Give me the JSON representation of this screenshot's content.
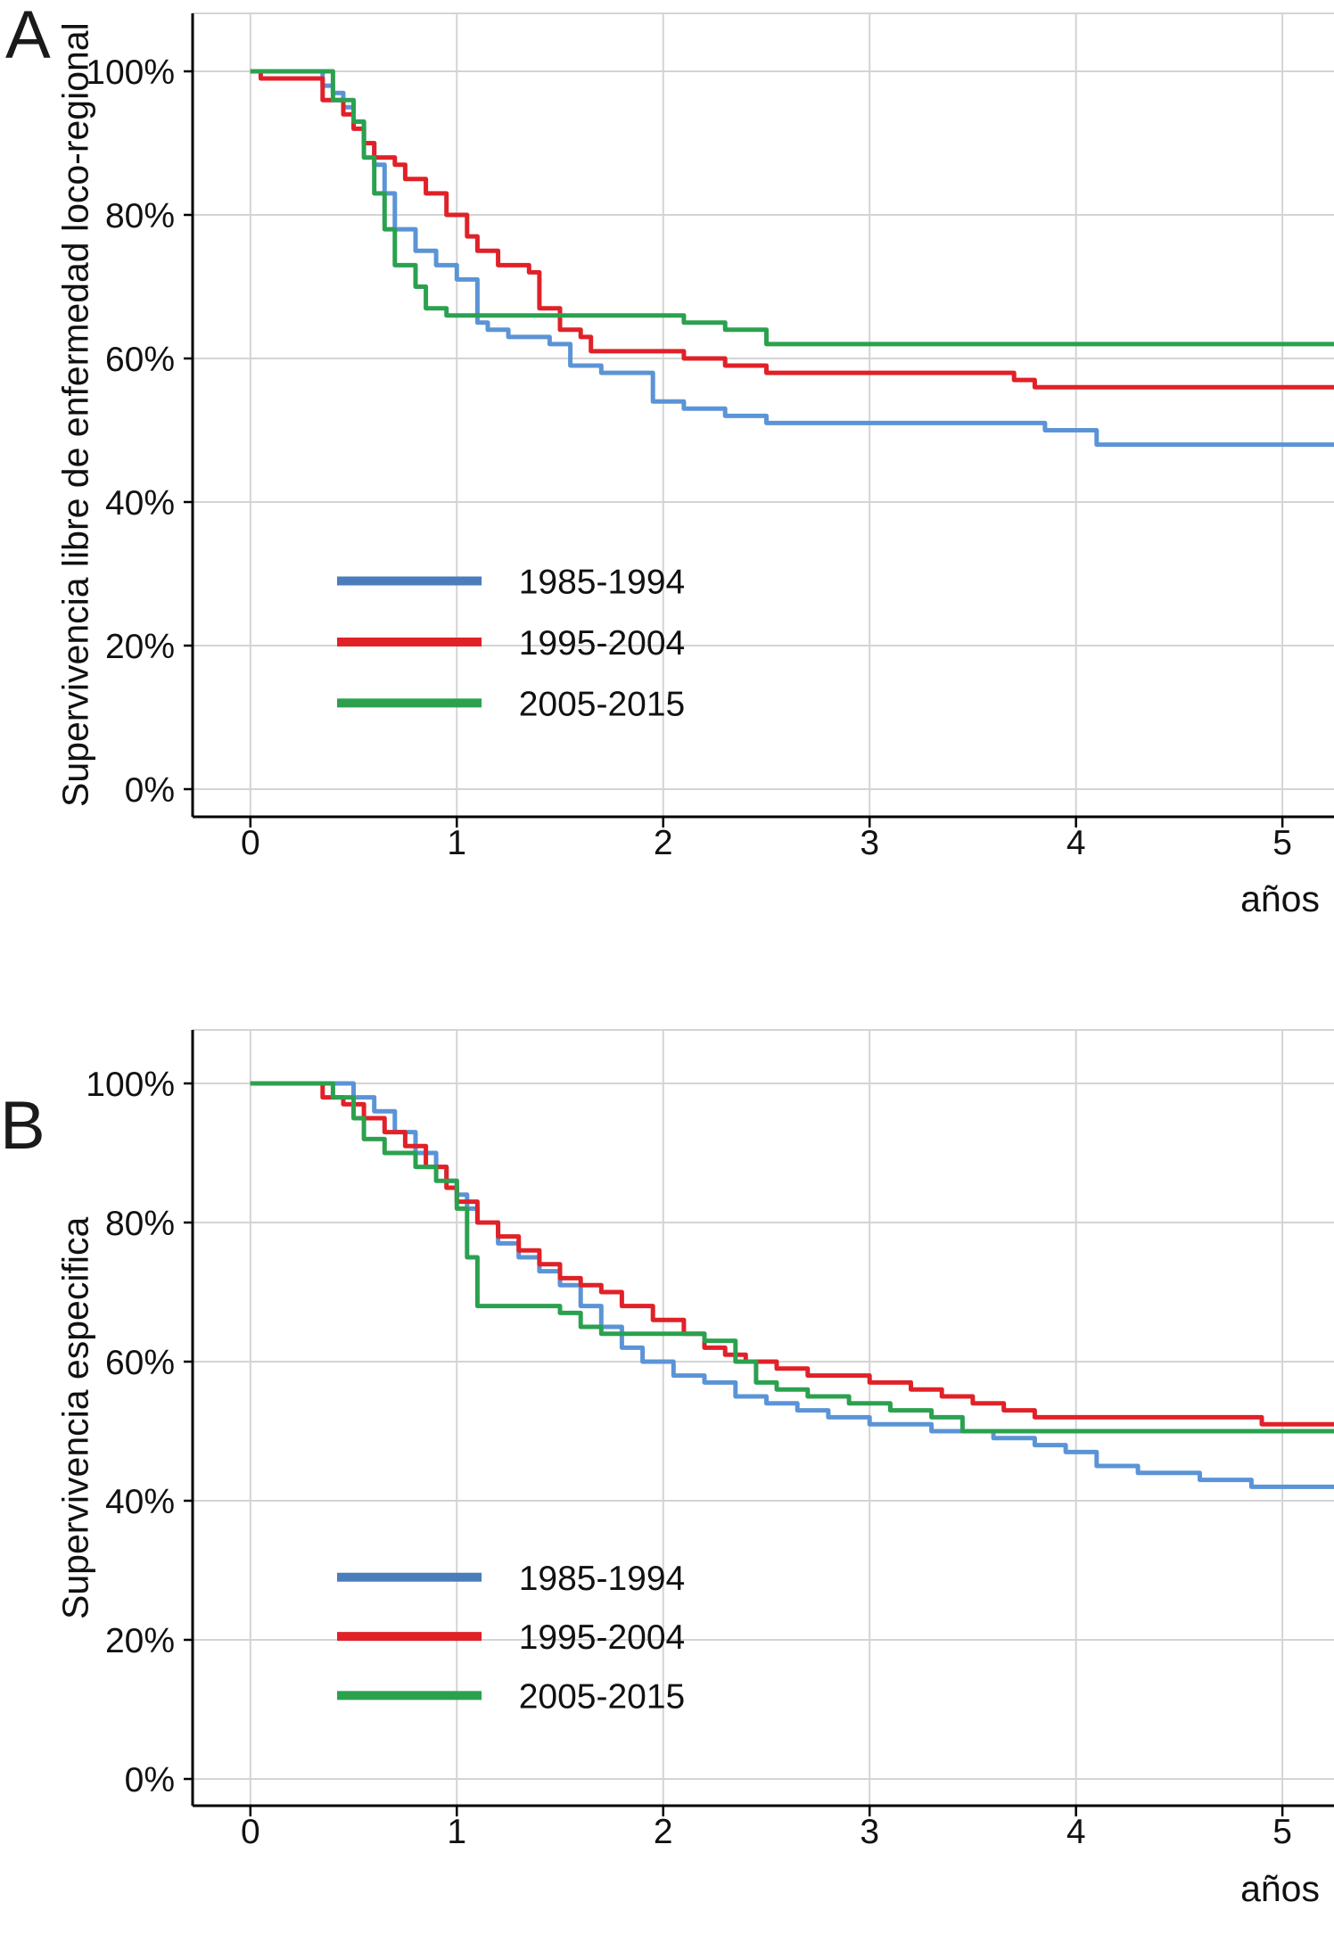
{
  "figure": {
    "background": "#ffffff",
    "grid_color": "#d4d4d4",
    "axis_color": "#000000"
  },
  "chart_data": [
    {
      "type": "line",
      "step": true,
      "panel": "A",
      "title": "",
      "ylabel": "Supervivencia libre de enfermedad loco-regional",
      "xlabel": "años",
      "xlim": [
        0,
        5.25
      ],
      "ylim": [
        0,
        100
      ],
      "grid": true,
      "legend_position": "lower-left",
      "x_ticks": {
        "values": [
          0,
          1,
          2,
          3,
          4,
          5
        ],
        "labels": [
          "0",
          "1",
          "2",
          "3",
          "4",
          "5"
        ]
      },
      "y_ticks": {
        "values": [
          100,
          80,
          60,
          40,
          20,
          0
        ],
        "labels": [
          "100%",
          "80%",
          "60%",
          "40%",
          "20%",
          "0%"
        ]
      },
      "series": [
        {
          "name": "1985-1994",
          "color": "#5b94d6",
          "legend_color": "#4a7dbb",
          "x": [
            0,
            0.3,
            0.35,
            0.4,
            0.45,
            0.5,
            0.55,
            0.6,
            0.65,
            0.7,
            0.8,
            0.9,
            1.0,
            1.1,
            1.15,
            1.25,
            1.45,
            1.55,
            1.7,
            1.95,
            2.1,
            2.3,
            2.5,
            3.6,
            3.85,
            4.1,
            5.25
          ],
          "y": [
            100,
            100,
            98,
            97,
            95,
            93,
            90,
            87,
            83,
            78,
            75,
            73,
            71,
            65,
            64,
            63,
            62,
            59,
            58,
            54,
            53,
            52,
            51,
            51,
            50,
            48,
            48
          ]
        },
        {
          "name": "1995-2004",
          "color": "#e02128",
          "legend_color": "#e02128",
          "x": [
            0,
            0.05,
            0.3,
            0.35,
            0.45,
            0.5,
            0.55,
            0.6,
            0.7,
            0.75,
            0.85,
            0.95,
            1.05,
            1.1,
            1.2,
            1.35,
            1.4,
            1.5,
            1.6,
            1.65,
            2.1,
            2.3,
            2.5,
            2.7,
            3.7,
            3.8,
            5.25
          ],
          "y": [
            100,
            99,
            99,
            96,
            94,
            92,
            90,
            88,
            87,
            85,
            83,
            80,
            77,
            75,
            73,
            72,
            67,
            64,
            63,
            61,
            60,
            59,
            58,
            58,
            57,
            56,
            56
          ]
        },
        {
          "name": "2005-2015",
          "color": "#2ba14f",
          "legend_color": "#2ba14f",
          "x": [
            0,
            0.35,
            0.4,
            0.5,
            0.55,
            0.6,
            0.65,
            0.7,
            0.8,
            0.85,
            0.95,
            2.1,
            2.3,
            2.5,
            5.25
          ],
          "y": [
            100,
            100,
            96,
            93,
            88,
            83,
            78,
            73,
            70,
            67,
            66,
            65,
            64,
            62,
            62
          ]
        }
      ]
    },
    {
      "type": "line",
      "step": true,
      "panel": "B",
      "title": "",
      "ylabel": "Supervivencia especifica",
      "xlabel": "años",
      "xlim": [
        0,
        5.25
      ],
      "ylim": [
        0,
        100
      ],
      "grid": true,
      "legend_position": "lower-left",
      "x_ticks": {
        "values": [
          0,
          1,
          2,
          3,
          4,
          5
        ],
        "labels": [
          "0",
          "1",
          "2",
          "3",
          "4",
          "5"
        ]
      },
      "y_ticks": {
        "values": [
          100,
          80,
          60,
          40,
          20,
          0
        ],
        "labels": [
          "100%",
          "80%",
          "60%",
          "40%",
          "20%",
          "0%"
        ]
      },
      "series": [
        {
          "name": "1985-1994",
          "color": "#5b94d6",
          "legend_color": "#4a7dbb",
          "x": [
            0,
            0.45,
            0.5,
            0.6,
            0.7,
            0.8,
            0.9,
            0.95,
            1.0,
            1.05,
            1.1,
            1.2,
            1.3,
            1.4,
            1.5,
            1.6,
            1.7,
            1.8,
            1.9,
            2.05,
            2.2,
            2.35,
            2.5,
            2.65,
            2.8,
            3.0,
            3.3,
            3.6,
            3.8,
            3.95,
            4.1,
            4.3,
            4.6,
            4.85,
            5.25
          ],
          "y": [
            100,
            100,
            98,
            96,
            93,
            90,
            88,
            86,
            84,
            82,
            80,
            77,
            75,
            73,
            71,
            68,
            65,
            62,
            60,
            58,
            57,
            55,
            54,
            53,
            52,
            51,
            50,
            49,
            48,
            47,
            45,
            44,
            43,
            42,
            42
          ]
        },
        {
          "name": "1995-2004",
          "color": "#e02128",
          "legend_color": "#e02128",
          "x": [
            0,
            0.3,
            0.35,
            0.45,
            0.55,
            0.65,
            0.75,
            0.85,
            0.95,
            1.0,
            1.1,
            1.2,
            1.3,
            1.4,
            1.5,
            1.6,
            1.7,
            1.8,
            1.95,
            2.1,
            2.2,
            2.3,
            2.4,
            2.55,
            2.7,
            3.0,
            3.2,
            3.35,
            3.5,
            3.65,
            3.8,
            4.9,
            5.25
          ],
          "y": [
            100,
            100,
            98,
            97,
            95,
            93,
            91,
            88,
            85,
            83,
            80,
            78,
            76,
            74,
            72,
            71,
            70,
            68,
            66,
            64,
            62,
            61,
            60,
            59,
            58,
            57,
            56,
            55,
            54,
            53,
            52,
            51,
            51
          ]
        },
        {
          "name": "2005-2015",
          "color": "#2ba14f",
          "legend_color": "#2ba14f",
          "x": [
            0,
            0.3,
            0.4,
            0.5,
            0.55,
            0.65,
            0.8,
            0.9,
            1.0,
            1.05,
            1.1,
            1.5,
            1.6,
            1.7,
            2.2,
            2.35,
            2.45,
            2.55,
            2.7,
            2.9,
            3.1,
            3.3,
            3.45,
            5.25
          ],
          "y": [
            100,
            100,
            98,
            95,
            92,
            90,
            88,
            86,
            82,
            75,
            68,
            67,
            65,
            64,
            63,
            60,
            57,
            56,
            55,
            54,
            53,
            52,
            50,
            50
          ]
        }
      ]
    }
  ]
}
